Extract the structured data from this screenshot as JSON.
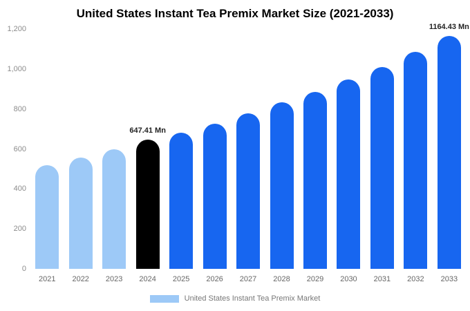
{
  "page": {
    "title": "United States Instant Tea Premix Market Size (2021-2033)"
  },
  "legend": {
    "label": "United States Instant Tea Premix Market",
    "swatch_color": "#9dc9f7"
  },
  "colors": {
    "historical_bar": "#9dc9f7",
    "base_year_bar": "#000000",
    "forecast_bar": "#1766f0"
  },
  "chart_data": {
    "type": "bar",
    "title": "United States Instant Tea Premix Market Size (2021-2033)",
    "xlabel": "",
    "ylabel": "",
    "categories": [
      "2021",
      "2022",
      "2023",
      "2024",
      "2025",
      "2026",
      "2027",
      "2028",
      "2029",
      "2030",
      "2031",
      "2032",
      "2033"
    ],
    "values": [
      520,
      557,
      597,
      647.41,
      682,
      727,
      778,
      833,
      887,
      946,
      1010,
      1085,
      1164.43
    ],
    "bar_colors": [
      "#9dc9f7",
      "#9dc9f7",
      "#9dc9f7",
      "#000000",
      "#1766f0",
      "#1766f0",
      "#1766f0",
      "#1766f0",
      "#1766f0",
      "#1766f0",
      "#1766f0",
      "#1766f0",
      "#1766f0"
    ],
    "data_labels": {
      "3": "647.41 Mn",
      "12": "1164.43 Mn"
    },
    "ylim": [
      0,
      1200
    ],
    "yticks": [
      "0",
      "200",
      "400",
      "600",
      "800",
      "1,000",
      "1,200"
    ],
    "grid": false,
    "legend_position": "bottom",
    "legend_entries": [
      "United States Instant Tea Premix Market"
    ]
  }
}
